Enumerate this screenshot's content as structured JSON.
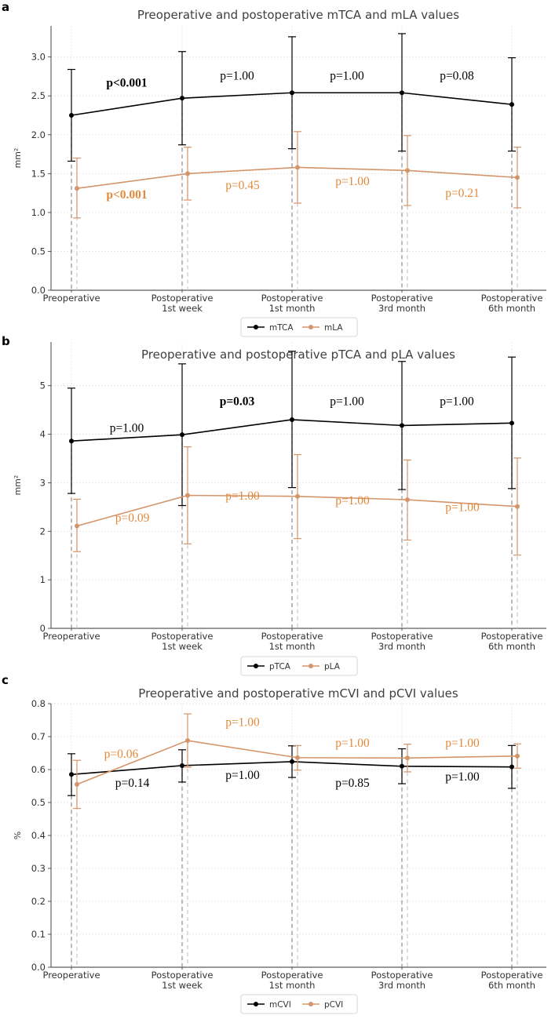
{
  "chart_data": [
    {
      "type": "line",
      "panel": "a",
      "title": "Preoperative and postoperative mTCA and mLA values",
      "ylabel": "mm²",
      "ylim": [
        0,
        3.4
      ],
      "yticks": [
        0.0,
        0.5,
        1.0,
        1.5,
        2.0,
        2.5,
        3.0
      ],
      "tick_decimals": 1,
      "categories": [
        "Preoperative",
        "Postoperative\n1st week",
        "Postoperative\n1st month",
        "Postoperative\n3rd month",
        "Postoperative\n6th month"
      ],
      "series": [
        {
          "name": "mTCA",
          "color": "#000000",
          "values": [
            2.25,
            2.47,
            2.54,
            2.54,
            2.39
          ],
          "err_low": [
            1.66,
            1.87,
            1.82,
            1.79,
            1.79
          ],
          "err_high": [
            2.84,
            3.07,
            3.26,
            3.3,
            2.99
          ]
        },
        {
          "name": "mLA",
          "color": "#d4956a",
          "values": [
            1.31,
            1.5,
            1.58,
            1.54,
            1.45
          ],
          "err_low": [
            0.93,
            1.16,
            1.12,
            1.09,
            1.06
          ],
          "err_high": [
            1.7,
            1.84,
            2.04,
            1.99,
            1.84
          ]
        }
      ],
      "annotations": [
        {
          "text": "p<0.001",
          "series": 0,
          "x": 0.5,
          "y": 2.62,
          "bold": true
        },
        {
          "text": "p=1.00",
          "series": 0,
          "x": 1.5,
          "y": 2.71,
          "bold": false
        },
        {
          "text": "p=1.00",
          "series": 0,
          "x": 2.5,
          "y": 2.71,
          "bold": false
        },
        {
          "text": "p=0.08",
          "series": 0,
          "x": 3.5,
          "y": 2.71,
          "bold": false
        },
        {
          "text": "p<0.001",
          "series": 1,
          "x": 0.5,
          "y": 1.18,
          "bold": true
        },
        {
          "text": "p=0.45",
          "series": 1,
          "x": 1.55,
          "y": 1.3,
          "bold": false
        },
        {
          "text": "p=1.00",
          "series": 1,
          "x": 2.55,
          "y": 1.35,
          "bold": false
        },
        {
          "text": "p=0.21",
          "series": 1,
          "x": 3.55,
          "y": 1.2,
          "bold": false
        }
      ]
    },
    {
      "type": "line",
      "panel": "b",
      "title": "Preoperative and postoperative pTCA and pLA values",
      "ylabel": "mm²",
      "ylim": [
        0,
        5.9
      ],
      "yticks": [
        0,
        1,
        2,
        3,
        4,
        5
      ],
      "tick_decimals": 0,
      "categories": [
        "Preoperative",
        "Postoperative\n1st week",
        "Postoperative\n1st month",
        "Postoperative\n3rd month",
        "Postoperative\n6th month"
      ],
      "series": [
        {
          "name": "pTCA",
          "color": "#000000",
          "values": [
            3.86,
            3.99,
            4.3,
            4.18,
            4.23
          ],
          "err_low": [
            2.78,
            2.53,
            2.9,
            2.86,
            2.88
          ],
          "err_high": [
            4.95,
            5.45,
            5.71,
            5.5,
            5.59
          ]
        },
        {
          "name": "pLA",
          "color": "#d4956a",
          "values": [
            2.11,
            2.74,
            2.72,
            2.65,
            2.51
          ],
          "err_low": [
            1.58,
            1.74,
            1.85,
            1.82,
            1.51
          ],
          "err_high": [
            2.66,
            3.74,
            3.58,
            3.47,
            3.51
          ]
        }
      ],
      "annotations": [
        {
          "text": "p=1.00",
          "series": 0,
          "x": 0.5,
          "y": 4.05,
          "bold": false
        },
        {
          "text": "p=0.03",
          "series": 0,
          "x": 1.5,
          "y": 4.6,
          "bold": true
        },
        {
          "text": "p=1.00",
          "series": 0,
          "x": 2.5,
          "y": 4.6,
          "bold": false
        },
        {
          "text": "p=1.00",
          "series": 0,
          "x": 3.5,
          "y": 4.6,
          "bold": false
        },
        {
          "text": "p=0.09",
          "series": 1,
          "x": 0.55,
          "y": 2.2,
          "bold": false
        },
        {
          "text": "p=1.00",
          "series": 1,
          "x": 1.55,
          "y": 2.65,
          "bold": false
        },
        {
          "text": "p=1.00",
          "series": 1,
          "x": 2.55,
          "y": 2.55,
          "bold": false
        },
        {
          "text": "p=1.00",
          "series": 1,
          "x": 3.55,
          "y": 2.42,
          "bold": false
        }
      ]
    },
    {
      "type": "line",
      "panel": "c",
      "title": "Preoperative and postoperative mCVI and pCVI values",
      "ylabel": "%",
      "ylim": [
        0,
        0.8
      ],
      "yticks": [
        0.0,
        0.1,
        0.2,
        0.3,
        0.4,
        0.5,
        0.6,
        0.7,
        0.8
      ],
      "tick_decimals": 1,
      "categories": [
        "Preoperative",
        "Postoperative\n1st week",
        "Postoperative\n1st month",
        "Postoperative\n3rd month",
        "Postoperative\n6th month"
      ],
      "series": [
        {
          "name": "mCVI",
          "color": "#000000",
          "values": [
            0.585,
            0.612,
            0.624,
            0.61,
            0.608
          ],
          "err_low": [
            0.521,
            0.562,
            0.576,
            0.557,
            0.543
          ],
          "err_high": [
            0.648,
            0.66,
            0.672,
            0.663,
            0.673
          ]
        },
        {
          "name": "pCVI",
          "color": "#d4956a",
          "values": [
            0.555,
            0.688,
            0.636,
            0.635,
            0.641
          ],
          "err_low": [
            0.482,
            0.607,
            0.598,
            0.593,
            0.604
          ],
          "err_high": [
            0.628,
            0.769,
            0.673,
            0.677,
            0.678
          ]
        }
      ],
      "annotations": [
        {
          "text": "p=0.06",
          "series": 1,
          "x": 0.45,
          "y": 0.636,
          "bold": false
        },
        {
          "text": "p=1.00",
          "series": 1,
          "x": 1.55,
          "y": 0.732,
          "bold": false
        },
        {
          "text": "p=1.00",
          "series": 1,
          "x": 2.55,
          "y": 0.669,
          "bold": false
        },
        {
          "text": "p=1.00",
          "series": 1,
          "x": 3.55,
          "y": 0.669,
          "bold": false
        },
        {
          "text": "p=0.14",
          "series": 0,
          "x": 0.55,
          "y": 0.548,
          "bold": false
        },
        {
          "text": "p=1.00",
          "series": 0,
          "x": 1.55,
          "y": 0.572,
          "bold": false
        },
        {
          "text": "p=0.85",
          "series": 0,
          "x": 2.55,
          "y": 0.548,
          "bold": false
        },
        {
          "text": "p=1.00",
          "series": 0,
          "x": 3.55,
          "y": 0.567,
          "bold": false
        }
      ]
    }
  ]
}
